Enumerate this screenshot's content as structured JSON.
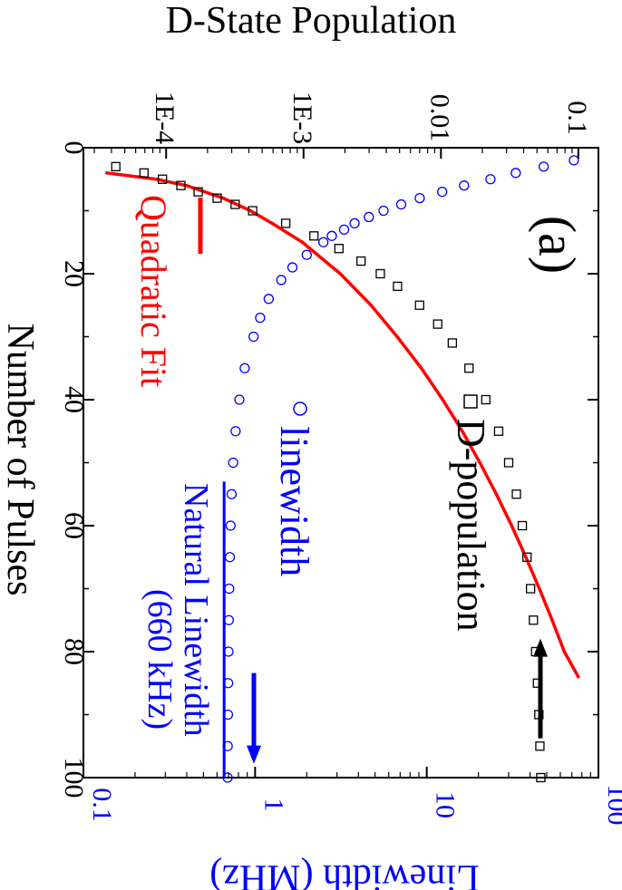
{
  "chart_data": {
    "type": "scatter",
    "orientation": "rotated 90 degrees clockwise",
    "panel_label": "(a)",
    "x_axis": {
      "label": "Number of Pulses",
      "range": [
        0,
        100
      ],
      "ticks": [
        "0",
        "20",
        "40",
        "60",
        "80",
        "100"
      ],
      "tick_values": [
        0,
        20,
        40,
        60,
        80,
        100
      ]
    },
    "y_left_axis": {
      "label": "D-State Population",
      "scale": "log",
      "range": [
        2.5e-05,
        0.14
      ],
      "ticks": [
        "1E-4",
        "1E-3",
        "0.01",
        "0.1"
      ],
      "tick_values": [
        0.0001,
        0.001,
        0.01,
        0.1
      ]
    },
    "y_right_axis": {
      "label": "Linewidth (MHz)",
      "scale": "log",
      "range": [
        0.1,
        100
      ],
      "ticks": [
        "0.1",
        "1",
        "10",
        "100"
      ],
      "tick_values": [
        0.1,
        1,
        10,
        100
      ],
      "color": "#0000ff"
    },
    "series": [
      {
        "name": "D-population",
        "marker": "open-square",
        "color": "#000000",
        "axis": "left",
        "x": [
          3,
          4,
          5,
          6,
          7,
          8,
          9,
          10,
          12,
          14,
          16,
          18,
          20,
          22,
          25,
          28,
          31,
          35,
          40,
          45,
          50,
          55,
          60,
          65,
          70,
          75,
          80,
          85,
          90,
          95,
          100
        ],
        "y": [
          4.3e-05,
          6.9e-05,
          9.4e-05,
          0.000128,
          0.000171,
          0.000235,
          0.000318,
          0.000426,
          0.000742,
          0.00119,
          0.00181,
          0.00262,
          0.00362,
          0.00483,
          0.00699,
          0.00947,
          0.0121,
          0.016,
          0.0212,
          0.0263,
          0.0311,
          0.0354,
          0.0391,
          0.0423,
          0.0449,
          0.0471,
          0.0489,
          0.0504,
          0.0516,
          0.0525,
          0.0533
        ]
      },
      {
        "name": "linewidth",
        "marker": "open-circle",
        "color": "#0000ff",
        "axis": "right",
        "x": [
          2,
          3,
          4,
          5,
          6,
          7,
          8,
          9,
          10,
          11,
          12,
          13,
          14,
          15,
          17,
          19,
          21,
          24,
          27,
          30,
          35,
          40,
          45,
          50,
          55,
          60,
          65,
          70,
          75,
          80,
          85,
          90,
          95,
          100
        ],
        "y": [
          72,
          48,
          33,
          23.5,
          16.5,
          12.3,
          9.1,
          7.1,
          5.6,
          4.6,
          3.8,
          3.3,
          2.8,
          2.5,
          2.0,
          1.65,
          1.42,
          1.2,
          1.07,
          0.98,
          0.87,
          0.81,
          0.77,
          0.745,
          0.73,
          0.72,
          0.713,
          0.707,
          0.703,
          0.7,
          0.697,
          0.695,
          0.693,
          0.692
        ]
      },
      {
        "name": "Quadratic Fit",
        "marker": "line",
        "color": "#ff0000",
        "axis": "left",
        "x": [
          4,
          5,
          6,
          8,
          10,
          12,
          15,
          20,
          25,
          30,
          35,
          40,
          45,
          50,
          55,
          60,
          65,
          70,
          75,
          80,
          84
        ],
        "y": [
          3.7e-05,
          8.5e-05,
          0.00014,
          0.00026,
          0.00041,
          0.00059,
          0.00098,
          0.00185,
          0.0031,
          0.0048,
          0.0072,
          0.0103,
          0.0143,
          0.0192,
          0.0253,
          0.0327,
          0.0415,
          0.052,
          0.0645,
          0.079,
          0.1
        ]
      }
    ],
    "reference_line": {
      "label": "Natural Linewidth",
      "sublabel": "(660 kHz)",
      "value": 0.66,
      "axis": "right",
      "x_start": 53,
      "x_end": 100,
      "color": "#0000ff"
    },
    "arrows": [
      {
        "color": "#000000",
        "x": 88,
        "points_to": "left axis"
      },
      {
        "color": "#0000ff",
        "x": 88,
        "points_to": "right axis"
      }
    ],
    "legend": {
      "placement": "inside plot, upper area (rotated)",
      "entries": [
        "D-population",
        "linewidth",
        "Quadratic Fit"
      ]
    }
  }
}
